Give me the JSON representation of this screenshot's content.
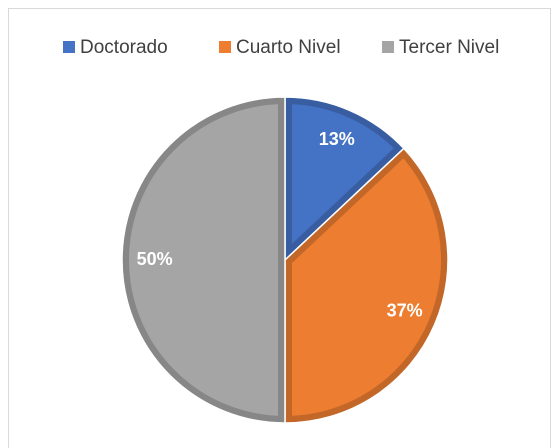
{
  "chart_data": {
    "type": "pie",
    "categories": [
      "Doctorado",
      "Cuarto Nivel",
      "Tercer Nivel"
    ],
    "values": [
      13,
      37,
      50
    ],
    "value_labels": [
      "13%",
      "37%",
      "50%"
    ],
    "colors": [
      "#4472c4",
      "#ed7d31",
      "#a5a5a5"
    ],
    "legend": "top"
  }
}
